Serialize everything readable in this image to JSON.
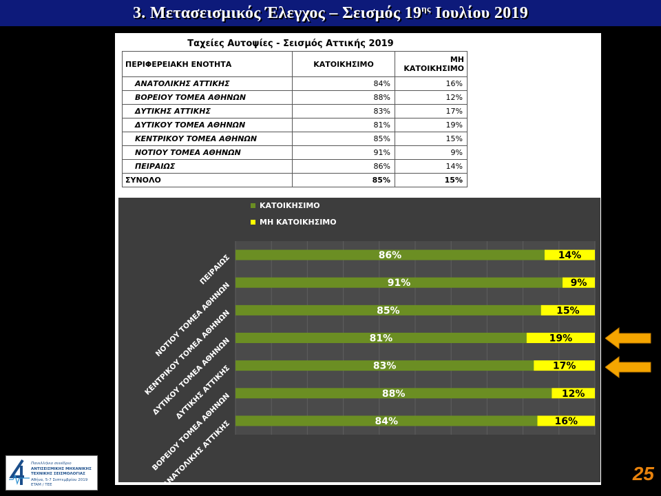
{
  "slide": {
    "title_main": "3. Μετασεισμικός Έλεγχος – Σεισμός 19",
    "title_sup": "ης",
    "title_end": " Ιουλίου 2019",
    "page_number": "25",
    "accent_color": "#e8820c",
    "title_bar_color": "#0d1a7a"
  },
  "table": {
    "title": "Ταχείες Αυτοψίες  -  Σεισμός Αττικής 2019",
    "headers": [
      "ΠΕΡΙΦΕΡΕΙΑΚΗ ΕΝΟΤΗΤΑ",
      "ΚΑΤΟΙΚΗΣΙΜΟ",
      "ΜΗ ΚΑΤΟΙΚΗΣΙΜΟ"
    ],
    "rows": [
      [
        "ΑΝΑΤΟΛΙΚΗΣ ΑΤΤΙΚΗΣ",
        "84%",
        "16%"
      ],
      [
        "ΒΟΡΕΙΟΥ ΤΟΜΕΑ ΑΘΗΝΩΝ",
        "88%",
        "12%"
      ],
      [
        "ΔΥΤΙΚΗΣ ΑΤΤΙΚΗΣ",
        "83%",
        "17%"
      ],
      [
        "ΔΥΤΙΚΟΥ ΤΟΜΕΑ ΑΘΗΝΩΝ",
        "81%",
        "19%"
      ],
      [
        "ΚΕΝΤΡΙΚΟΥ ΤΟΜΕΑ ΑΘΗΝΩΝ",
        "85%",
        "15%"
      ],
      [
        "ΝΟΤΙΟΥ ΤΟΜΕΑ ΑΘΗΝΩΝ",
        "91%",
        "9%"
      ],
      [
        "ΠΕΙΡΑΙΩΣ",
        "86%",
        "14%"
      ]
    ],
    "total": [
      "ΣΥΝΟΛΟ",
      "85%",
      "15%"
    ]
  },
  "chart_data": {
    "type": "bar",
    "orientation": "horizontal",
    "stacked": true,
    "categories": [
      "ΑΝΑΤΟΛΙΚΗΣ ΑΤΤΙΚΗΣ",
      "ΒΟΡΕΙΟΥ ΤΟΜΕΑ ΑΘΗΝΩΝ",
      "ΔΥΤΙΚΗΣ ΑΤΤΙΚΗΣ",
      "ΔΥΤΙΚΟΥ ΤΟΜΕΑ ΑΘΗΝΩΝ",
      "ΚΕΝΤΡΙΚΟΥ ΤΟΜΕΑ ΑΘΗΝΩΝ",
      "ΝΟΤΙΟΥ ΤΟΜΕΑ ΑΘΗΝΩΝ",
      "ΠΕΙΡΑΙΩΣ"
    ],
    "series": [
      {
        "name": "ΚΑΤΟΙΚΗΣΙΜΟ",
        "values": [
          84,
          88,
          83,
          81,
          85,
          91,
          86
        ],
        "color": "#6b8e23"
      },
      {
        "name": "ΜΗ ΚΑΤΟΙΚΗΣΙΜΟ",
        "values": [
          16,
          12,
          17,
          19,
          15,
          9,
          14
        ],
        "color": "#ffff00"
      }
    ],
    "xlim": [
      0,
      100
    ],
    "value_suffix": "%",
    "legend": "top-left",
    "grid": true,
    "background": "#3d3d3d",
    "highlighted_categories": [
      "ΔΥΤΙΚΗΣ ΑΤΤΙΚΗΣ",
      "ΔΥΤΙΚΟΥ ΤΟΜΕΑ ΑΘΗΝΩΝ"
    ]
  },
  "logo": {
    "line1": "Πανελλήνιο συνέδριο",
    "line2": "ΑΝΤΙΣΕΙΣΜΙΚΗΣ ΜΗΧΑΝΙΚΗΣ",
    "line3": "ΤΕΧΝΙΚΗΣ ΣΕΙΣΜΟΛΟΓΙΑΣ",
    "line4": "Αθήνα, 5-7 Σεπτεμβρίου 2019",
    "line5": "ETAM / TEE"
  }
}
